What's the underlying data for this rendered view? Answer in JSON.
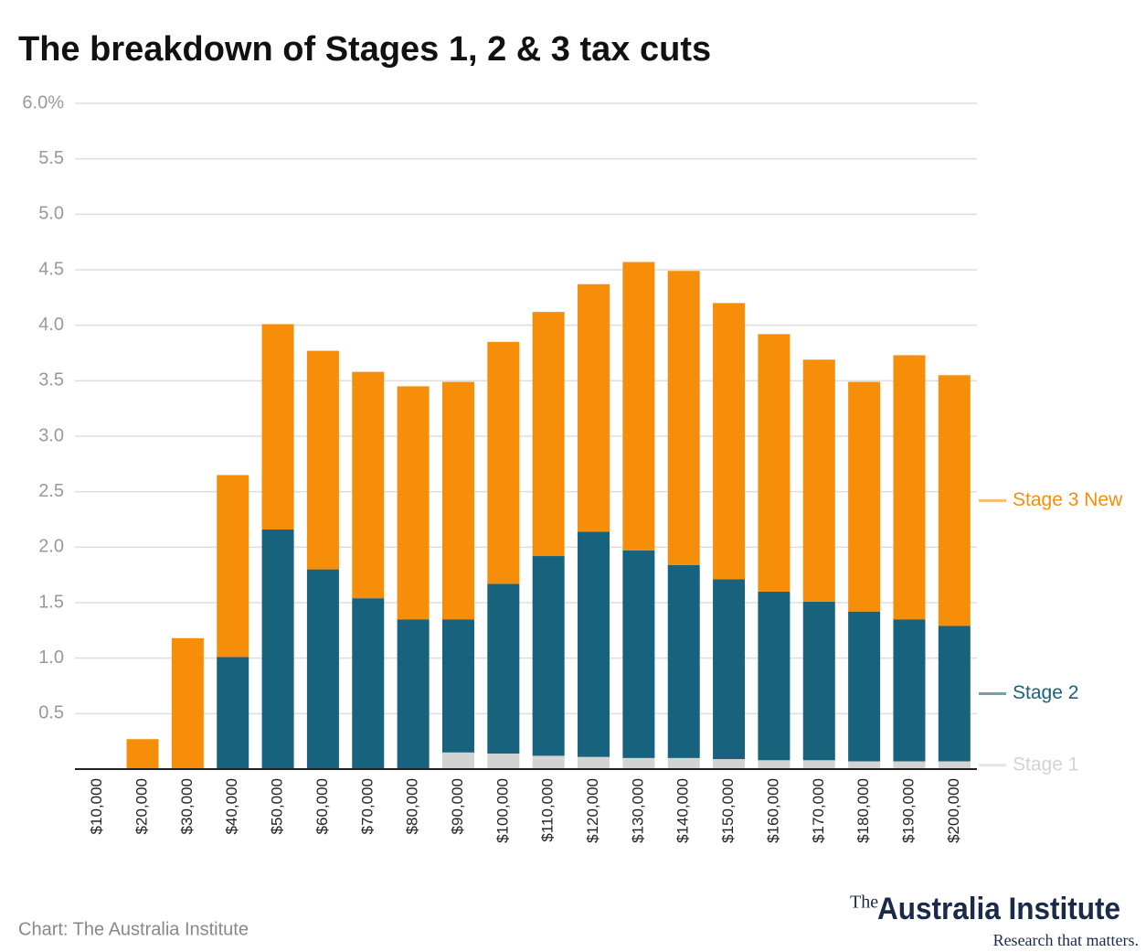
{
  "chart_data": {
    "type": "stacked_bar",
    "title": "The breakdown of Stages 1, 2 & 3 tax cuts",
    "source": "Chart: The Australia Institute",
    "logo": {
      "prefix": "The",
      "name": "Australia Institute",
      "tagline": "Research that matters."
    },
    "categories": [
      "$10,000",
      "$20,000",
      "$30,000",
      "$40,000",
      "$50,000",
      "$60,000",
      "$70,000",
      "$80,000",
      "$90,000",
      "$100,000",
      "$110,000",
      "$120,000",
      "$130,000",
      "$140,000",
      "$150,000",
      "$160,000",
      "$170,000",
      "$180,000",
      "$190,000",
      "$200,000"
    ],
    "series": [
      {
        "name": "Stage 1",
        "color": "#d3d3d3",
        "values": [
          0,
          0,
          0,
          0,
          0,
          0,
          0,
          0,
          0.15,
          0.14,
          0.12,
          0.11,
          0.1,
          0.1,
          0.09,
          0.08,
          0.08,
          0.07,
          0.07,
          0.07
        ]
      },
      {
        "name": "Stage 2",
        "color": "#17627d",
        "values": [
          0,
          0,
          0,
          1.01,
          2.16,
          1.8,
          1.54,
          1.35,
          1.2,
          1.53,
          1.8,
          2.03,
          1.87,
          1.74,
          1.62,
          1.52,
          1.43,
          1.35,
          1.28,
          1.22
        ]
      },
      {
        "name": "Stage 3 New",
        "color": "#f78e0a",
        "values": [
          0,
          0.27,
          1.18,
          1.64,
          1.85,
          1.97,
          2.04,
          2.1,
          2.14,
          2.18,
          2.2,
          2.23,
          2.6,
          2.65,
          2.49,
          2.32,
          2.18,
          2.07,
          2.38,
          2.26
        ]
      }
    ],
    "ylim": [
      0,
      6
    ],
    "yticks": [
      {
        "value": 0.5,
        "label": "0.5"
      },
      {
        "value": 1,
        "label": "1.0"
      },
      {
        "value": 1.5,
        "label": "1.5"
      },
      {
        "value": 2,
        "label": "2.0"
      },
      {
        "value": 2.5,
        "label": "2.5"
      },
      {
        "value": 3,
        "label": "3.0"
      },
      {
        "value": 3.5,
        "label": "3.5"
      },
      {
        "value": 4,
        "label": "4.0"
      },
      {
        "value": 4.5,
        "label": "4.5"
      },
      {
        "value": 5,
        "label": "5.0"
      },
      {
        "value": 5.5,
        "label": "5.5"
      },
      {
        "value": 6,
        "label": "6.0%"
      }
    ],
    "grid": true
  }
}
